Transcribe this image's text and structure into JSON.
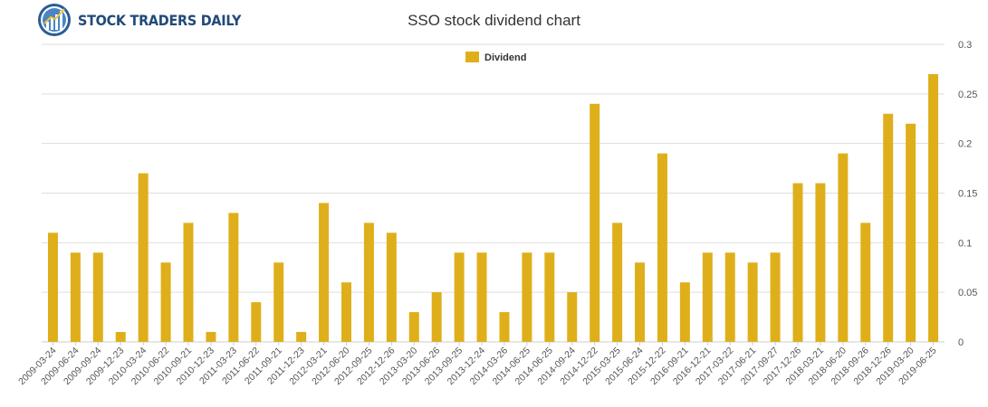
{
  "brand": {
    "name": "STOCK TRADERS DAILY"
  },
  "chart_data": {
    "type": "bar",
    "title": "SSO stock dividend chart",
    "xlabel": "",
    "ylabel": "",
    "ylim": [
      0,
      0.3
    ],
    "yticks": [
      "0",
      "0.05",
      "0.1",
      "0.15",
      "0.2",
      "0.25",
      "0.3"
    ],
    "grid": true,
    "legend_position": "top-center",
    "bar_color": "#dfaf1b",
    "categories": [
      "2009-03-24",
      "2009-06-24",
      "2009-09-24",
      "2009-12-23",
      "2010-03-24",
      "2010-06-22",
      "2010-09-21",
      "2010-12-23",
      "2011-03-23",
      "2011-06-22",
      "2011-09-21",
      "2011-12-23",
      "2012-03-21",
      "2012-06-20",
      "2012-09-25",
      "2012-12-26",
      "2013-03-20",
      "2013-06-26",
      "2013-09-25",
      "2013-12-24",
      "2014-03-26",
      "2014-06-25",
      "2014-06-25",
      "2014-09-24",
      "2014-12-22",
      "2015-03-25",
      "2015-06-24",
      "2015-12-22",
      "2016-09-21",
      "2016-12-21",
      "2017-03-22",
      "2017-06-21",
      "2017-09-27",
      "2017-12-26",
      "2018-03-21",
      "2018-06-20",
      "2018-09-26",
      "2018-12-26",
      "2019-03-20",
      "2019-06-25"
    ],
    "series": [
      {
        "name": "Dividend",
        "values": [
          0.11,
          0.09,
          0.09,
          0.01,
          0.17,
          0.08,
          0.12,
          0.01,
          0.13,
          0.04,
          0.08,
          0.01,
          0.14,
          0.06,
          0.12,
          0.11,
          0.03,
          0.05,
          0.09,
          0.09,
          0.03,
          0.09,
          0.09,
          0.05,
          0.24,
          0.12,
          0.08,
          0.19,
          0.06,
          0.09,
          0.09,
          0.08,
          0.09,
          0.16,
          0.16,
          0.19,
          0.12,
          0.23,
          0.22,
          0.27
        ]
      }
    ]
  }
}
